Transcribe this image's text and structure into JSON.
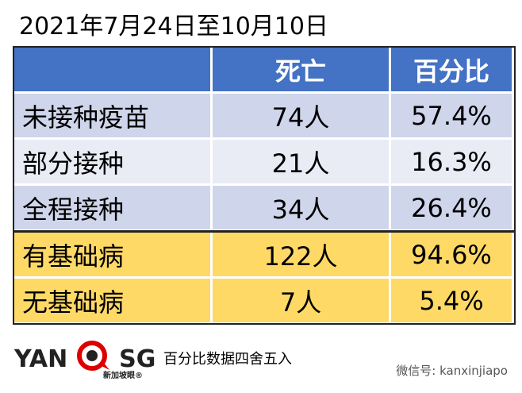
{
  "header": {
    "title": "2021年7月24日至10月10日"
  },
  "table": {
    "columns": [
      "",
      "死亡",
      "百分比"
    ],
    "rows": [
      [
        "未接种疫苗",
        "74人",
        "57.4%"
      ],
      [
        "部分接种",
        "21人",
        "16.3%"
      ],
      [
        "全程接种",
        "34人",
        "26.4%"
      ],
      [
        "有基础病",
        "122人",
        "94.6%"
      ],
      [
        "无基础病",
        "7人",
        "5.4%"
      ]
    ]
  },
  "footer": {
    "logo_left": "YAN",
    "logo_right": "SG",
    "logo_sub": "新加坡眼®",
    "note": "百分比数据四舍五入",
    "watermark": "微信号: kanxinjiapo"
  }
}
